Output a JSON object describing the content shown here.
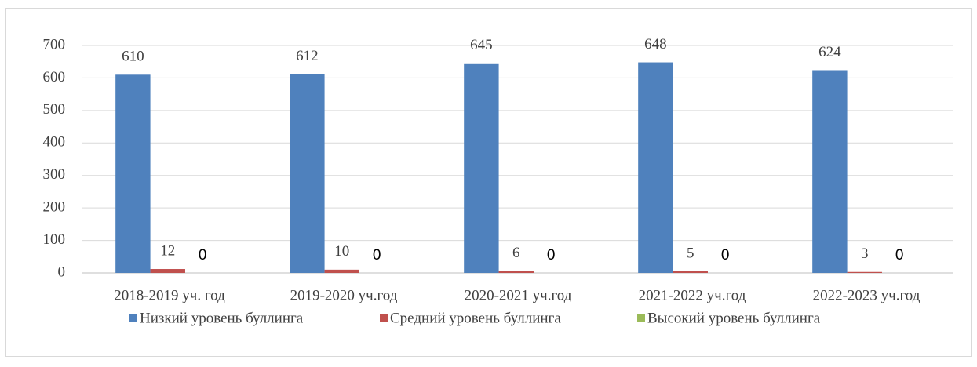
{
  "chart_data": {
    "type": "bar",
    "categories": [
      "2018-2019 уч. год",
      "2019-2020 уч.год",
      "2020-2021 уч.год",
      "2021-2022 уч.год",
      "2022-2023 уч.год"
    ],
    "series": [
      {
        "name": "Низкий уровень буллинга",
        "color": "#4f81bd",
        "values": [
          610,
          612,
          645,
          648,
          624
        ]
      },
      {
        "name": "Средний уровень буллинга",
        "color": "#c0504d",
        "values": [
          12,
          10,
          6,
          5,
          3
        ]
      },
      {
        "name": "Высокий уровень буллинга",
        "color": "#9bbb59",
        "values": [
          0,
          0,
          0,
          0,
          0
        ]
      }
    ],
    "ylim": [
      0,
      700
    ],
    "yticks": [
      0,
      100,
      200,
      300,
      400,
      500,
      600,
      700
    ],
    "grid": true,
    "legend": "bottom"
  }
}
